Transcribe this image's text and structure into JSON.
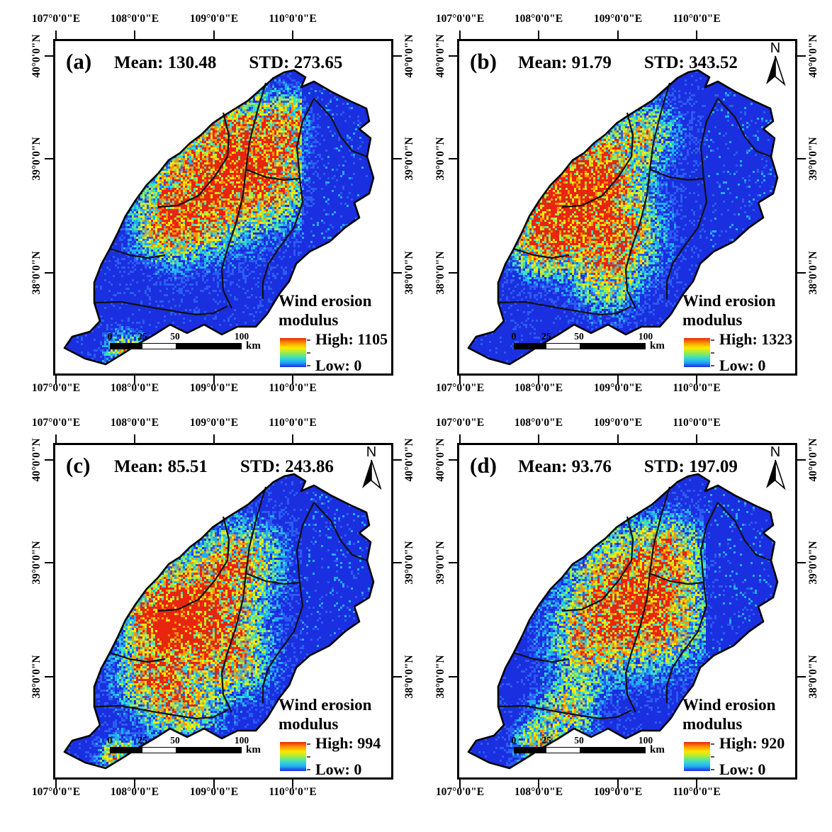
{
  "figure": {
    "axis": {
      "x_ticks": [
        "107°0'0\"E",
        "108°0'0\"E",
        "109°0'0\"E",
        "110°0'0\"E"
      ],
      "y_ticks": [
        "40°0'0\"N",
        "39°0'0\"N",
        "38°0'0\"N"
      ]
    },
    "scalebar": {
      "labels": [
        "0",
        "25",
        "50",
        "100"
      ],
      "unit": "km"
    },
    "legend": {
      "title_line1": "Wind erosion",
      "title_line2": "modulus"
    },
    "north_label": "N",
    "colors": {
      "ramp_top_to_bottom": [
        "#e8250f",
        "#ff9500",
        "#ffe800",
        "#a0ec44",
        "#3cdfc0",
        "#22aef5",
        "#1a2fe0"
      ],
      "map_base": "#1a2fe0",
      "boundary": "#111111"
    }
  },
  "panels": [
    {
      "label": "(a)",
      "mean_text": "Mean: 130.48",
      "std_text": "STD: 273.65",
      "legend_high": "High: 1105",
      "legend_low": "Low: 0",
      "north_arrow": false
    },
    {
      "label": "(b)",
      "mean_text": "Mean: 91.79",
      "std_text": "STD: 343.52",
      "legend_high": "High: 1323",
      "legend_low": "Low: 0",
      "north_arrow": true
    },
    {
      "label": "(c)",
      "mean_text": "Mean: 85.51",
      "std_text": "STD: 243.86",
      "legend_high": "High: 994",
      "legend_low": "Low: 0",
      "north_arrow": true
    },
    {
      "label": "(d)",
      "mean_text": "Mean: 93.76",
      "std_text": "STD: 197.09",
      "legend_high": "High: 920",
      "legend_low": "Low: 0",
      "north_arrow": true
    }
  ]
}
